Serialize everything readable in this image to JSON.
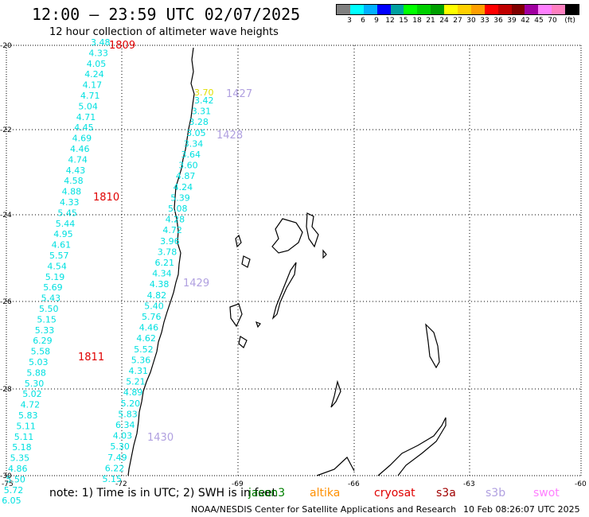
{
  "header": {
    "title": "12:00 – 23:59 UTC 02/07/2025",
    "subtitle": "12 hour collection of altimeter wave heights"
  },
  "colorbar": {
    "colors": [
      "#808080",
      "#00ffff",
      "#00b0ff",
      "#0000ff",
      "#00a0a0",
      "#00ff00",
      "#00d000",
      "#00a000",
      "#ffff00",
      "#ffd000",
      "#ffa000",
      "#ff0000",
      "#c00000",
      "#800000",
      "#a000a0",
      "#ff80ff",
      "#ff80c0",
      "#000000"
    ],
    "labels": [
      "3",
      "6",
      "9",
      "12",
      "15",
      "18",
      "21",
      "24",
      "27",
      "30",
      "33",
      "36",
      "39",
      "42",
      "45",
      "70",
      "(ft)"
    ]
  },
  "axes": {
    "lon_labels": [
      "-75",
      "-72",
      "-69",
      "-66",
      "-63",
      "-60"
    ],
    "lat_labels": [
      "-20",
      "-22",
      "-24",
      "-26",
      "-28",
      "-30"
    ]
  },
  "tracks": [
    {
      "color": "#00e0e0",
      "x_start": 114,
      "y_start": 57,
      "y_step": 13.4,
      "x_drift": -2.6,
      "values": [
        "3.48",
        "4.33",
        "4.05",
        "4.24",
        "4.17",
        "4.71",
        "5.04",
        "4.71",
        "4.45",
        "4.69",
        "4.46",
        "4.74",
        "4.43",
        "4.58",
        "4.88",
        "4.33",
        "5.45",
        "5.44",
        "4.95",
        "4.61",
        "5.57",
        "4.54",
        "5.19",
        "5.69",
        "5.43",
        "5.50",
        "5.15",
        "5.33",
        "6.29",
        "5.58",
        "5.03",
        "5.88",
        "5.30",
        "5.02",
        "4.72",
        "5.83",
        "5.11",
        "5.11",
        "5.18",
        "5.35",
        "4.86",
        "5.50",
        "5.72",
        "6.05"
      ]
    },
    {
      "color": "#00e0e0",
      "x_start": 244,
      "y_start": 130,
      "y_step": 13.6,
      "x_drift": -3.3,
      "values": [
        "3.42",
        "3.31",
        "3.28",
        "3.05",
        "3.34",
        "3.64",
        "3.60",
        "4.87",
        "4.24",
        "5.39",
        "5.08",
        "4.28",
        "4.72",
        "3.96",
        "3.78",
        "6.21",
        "4.34",
        "4.38",
        "4.82",
        "5.40",
        "5.76",
        "4.46",
        "4.62",
        "5.52",
        "5.36",
        "4.31",
        "5.21",
        "4.89",
        "5.20",
        "5.83",
        "6.34",
        "4.03",
        "5.30",
        "7.49",
        "6.22",
        "5.15"
      ]
    }
  ],
  "yellow_value": {
    "text": "3.70",
    "color": "#e0e000"
  },
  "passes": [
    {
      "text": "1809",
      "color": "#e00000"
    },
    {
      "text": "1810",
      "color": "#e00000"
    },
    {
      "text": "1811",
      "color": "#e00000"
    },
    {
      "text": "1427",
      "color": "#b0a0e0"
    },
    {
      "text": "1428",
      "color": "#b0a0e0"
    },
    {
      "text": "1429",
      "color": "#b0a0e0"
    },
    {
      "text": "1430",
      "color": "#b0a0e0"
    }
  ],
  "footer": {
    "note": "note:  1) Time is in UTC;  2) SWH is in feet",
    "satellites": [
      {
        "name": "jason3",
        "color": "#008000"
      },
      {
        "name": "altika",
        "color": "#ff9000"
      },
      {
        "name": "cryosat",
        "color": "#e00000"
      },
      {
        "name": "s3a",
        "color": "#a00000"
      },
      {
        "name": "s3b",
        "color": "#b0a0e0"
      },
      {
        "name": "swot",
        "color": "#ff80ff"
      }
    ],
    "credit": "NOAA/NESDIS Center for Satellite Applications and Research",
    "timestamp": "10 Feb 08:26:07 UTC 2025"
  }
}
